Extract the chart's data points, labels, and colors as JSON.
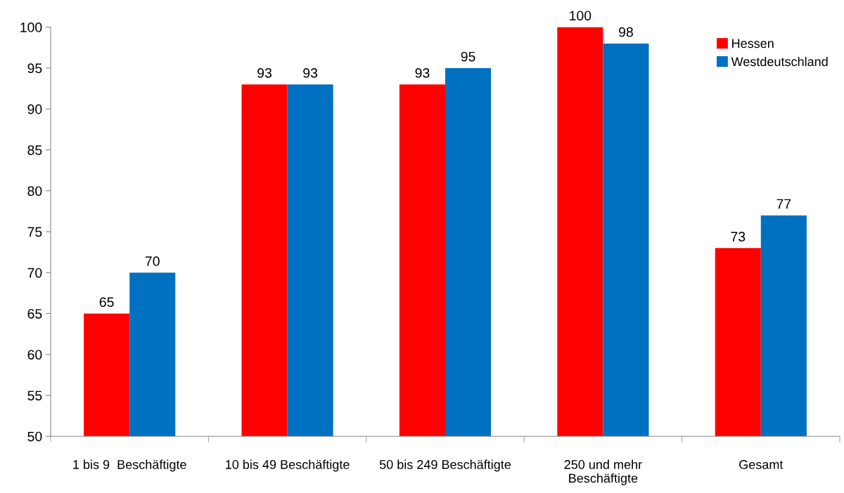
{
  "chart_data": {
    "type": "bar",
    "categories": [
      "1 bis 9  Beschäftigte",
      "10 bis 49 Beschäftigte",
      "50 bis 249 Beschäftigte",
      "250 und mehr\nBeschäftigte",
      "Gesamt"
    ],
    "series": [
      {
        "name": "Hessen",
        "color": "#ff0000",
        "values": [
          65,
          93,
          93,
          100,
          73
        ]
      },
      {
        "name": "Westdeutschland",
        "color": "#0070c0",
        "values": [
          70,
          93,
          95,
          98,
          77
        ]
      }
    ],
    "ylim": [
      50,
      100
    ],
    "yticks": [
      50,
      55,
      60,
      65,
      70,
      75,
      80,
      85,
      90,
      95,
      100
    ],
    "grid": false,
    "legend": "top right",
    "data_labels": true
  }
}
